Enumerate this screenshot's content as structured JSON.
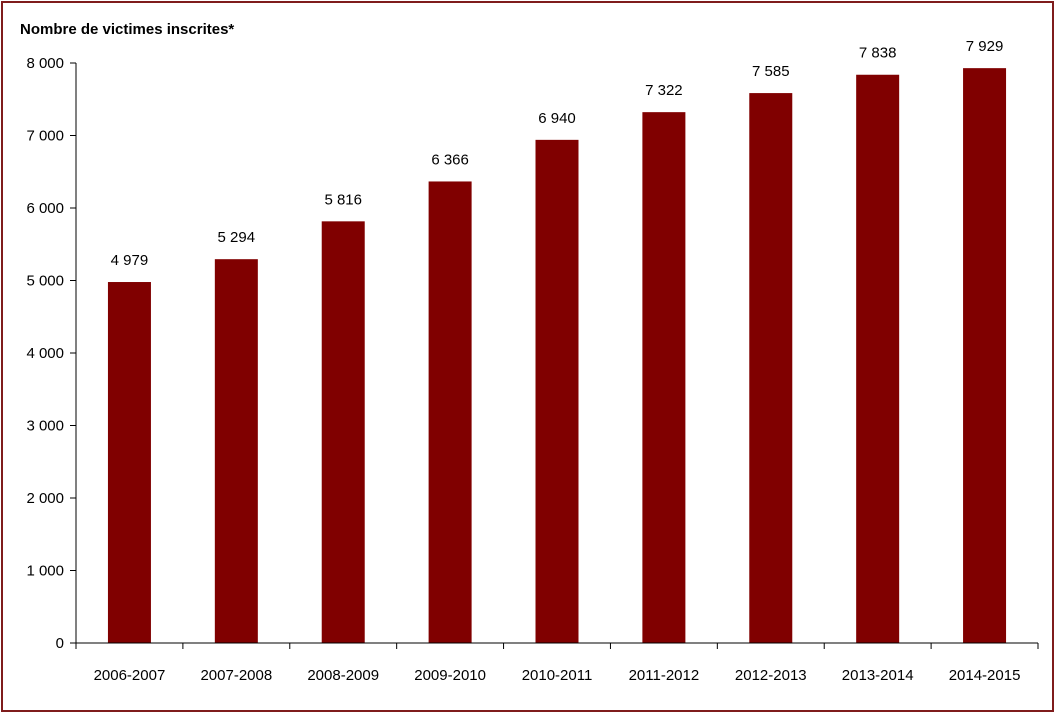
{
  "chart_data": {
    "type": "bar",
    "ylabel": "Nombre de victimes inscrites*",
    "categories": [
      "2006-2007",
      "2007-2008",
      "2008-2009",
      "2009-2010",
      "2010-2011",
      "2011-2012",
      "2012-2013",
      "2013-2014",
      "2014-2015"
    ],
    "values": [
      4979,
      5294,
      5816,
      6366,
      6940,
      7322,
      7585,
      7838,
      7929
    ],
    "value_labels": [
      "4 979",
      "5 294",
      "5 816",
      "6 366",
      "6 940",
      "7 322",
      "7 585",
      "7 838",
      "7 929"
    ],
    "yticks": [
      0,
      1000,
      2000,
      3000,
      4000,
      5000,
      6000,
      7000,
      8000
    ],
    "ytick_labels": [
      "0",
      "1 000",
      "2 000",
      "3 000",
      "4 000",
      "5 000",
      "6 000",
      "7 000",
      "8 000"
    ],
    "ylim": [
      0,
      8000
    ],
    "grid": false,
    "legend": "none",
    "colors": {
      "bar": "#800000",
      "frame": "#7f1c1c",
      "axis": "#000000"
    }
  }
}
